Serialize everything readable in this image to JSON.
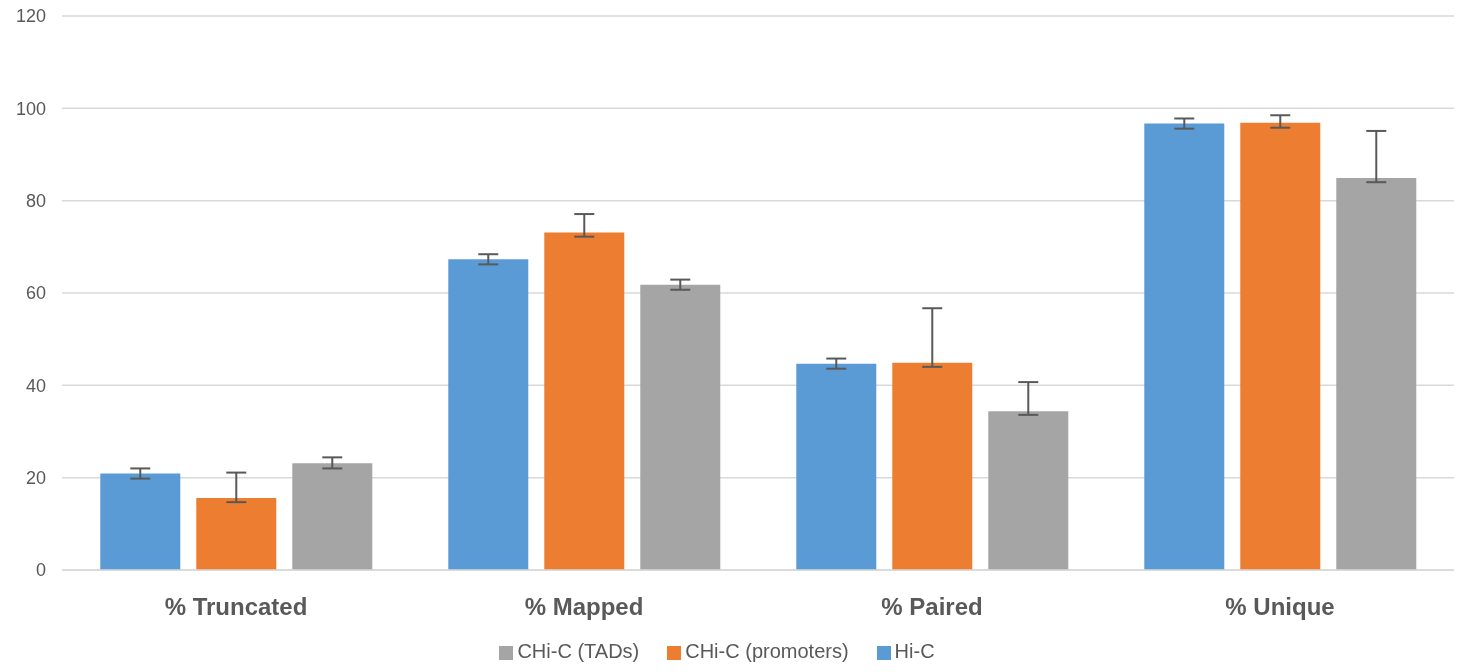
{
  "chart_data": {
    "type": "bar",
    "categories": [
      "% Truncated",
      "% Mapped",
      "% Paired",
      "% Unique"
    ],
    "series": [
      {
        "name": "Hi-C",
        "color": "#5b9bd5",
        "values": [
          20.9,
          67.3,
          44.7,
          96.7
        ],
        "errors": [
          [
            19.8,
            22.0
          ],
          [
            66.2,
            68.4
          ],
          [
            43.6,
            45.8
          ],
          [
            95.6,
            97.8
          ]
        ]
      },
      {
        "name": "CHi-C (promoters)",
        "color": "#ed7d31",
        "values": [
          15.6,
          73.1,
          44.9,
          96.9
        ],
        "errors": [
          [
            14.7,
            21.1
          ],
          [
            72.2,
            77.1
          ],
          [
            44.0,
            56.7
          ],
          [
            95.8,
            98.5
          ]
        ]
      },
      {
        "name": "CHi-C (TADs)",
        "color": "#a5a5a5",
        "values": [
          23.1,
          61.8,
          34.4,
          84.9
        ],
        "errors": [
          [
            22.0,
            24.4
          ],
          [
            60.7,
            62.9
          ],
          [
            33.6,
            40.7
          ],
          [
            84.0,
            95.1
          ]
        ]
      }
    ],
    "ylim": [
      0,
      120
    ],
    "yticks": [
      0,
      20,
      40,
      60,
      80,
      100,
      120
    ],
    "grid": "y",
    "legend": "bottom"
  }
}
